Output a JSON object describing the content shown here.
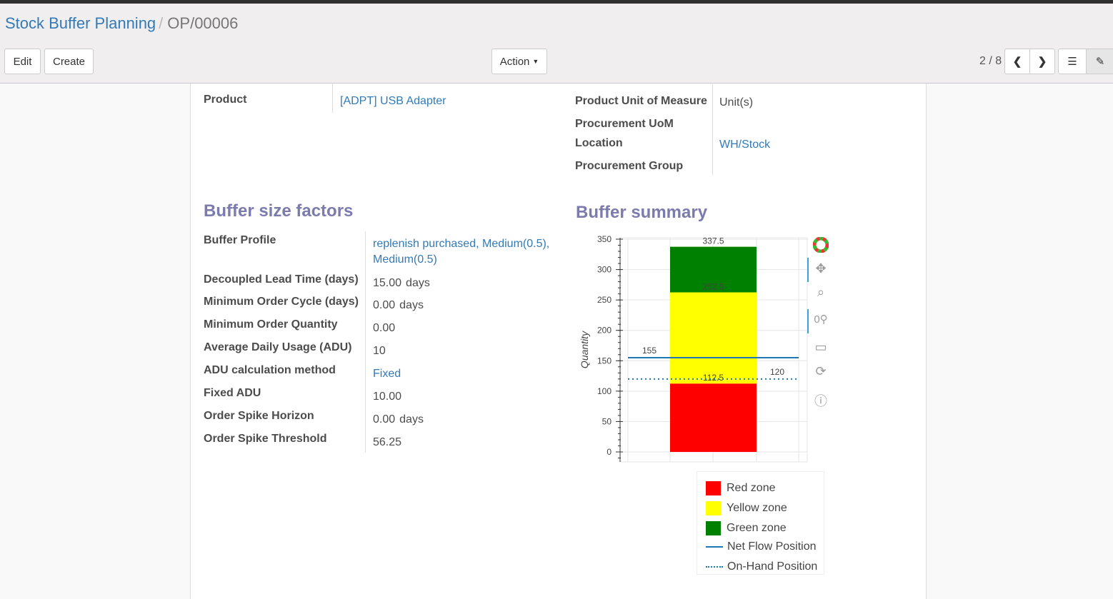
{
  "breadcrumb": {
    "parent": "Stock Buffer Planning",
    "current": "OP/00006"
  },
  "buttons": {
    "edit": "Edit",
    "create": "Create",
    "action": "Action"
  },
  "pager": {
    "text": "2 / 8"
  },
  "fields": {
    "product_label": "Product",
    "product_value": "[ADPT] USB Adapter",
    "uom_label": "Product Unit of Measure",
    "uom_value": "Unit(s)",
    "proc_uom_label": "Procurement UoM",
    "location_label": "Location",
    "location_value": "WH/Stock",
    "proc_group_label": "Procurement Group"
  },
  "factors": {
    "title": "Buffer size factors",
    "rows": [
      {
        "label": "Buffer Profile",
        "value": "replenish purchased, Medium(0.5),",
        "value2": "Medium(0.5)"
      },
      {
        "label": "Decoupled Lead Time (days)",
        "value": "15.00",
        "unit": "days"
      },
      {
        "label": "Minimum Order Cycle (days)",
        "value": "0.00",
        "unit": "days"
      },
      {
        "label": "Minimum Order Quantity",
        "value": "0.00"
      },
      {
        "label": "Average Daily Usage (ADU)",
        "value": "10"
      },
      {
        "label": "ADU calculation method",
        "value": "Fixed"
      },
      {
        "label": "Fixed ADU",
        "value": "10.00"
      },
      {
        "label": "Order Spike Horizon",
        "value": "0.00",
        "unit": "days"
      },
      {
        "label": "Order Spike Threshold",
        "value": "56.25"
      }
    ]
  },
  "summary": {
    "title": "Buffer summary"
  },
  "chart_data": {
    "type": "bar",
    "stacked": true,
    "ylabel": "Quantity",
    "ylim": [
      -10,
      350
    ],
    "yticks": [
      "350",
      "300",
      "250",
      "200",
      "150",
      "100",
      "50",
      "0"
    ],
    "grid": true,
    "zones": [
      {
        "name": "Red zone",
        "bottom": 0,
        "top": 112.5,
        "color": "#ff0000",
        "label": "112.5"
      },
      {
        "name": "Yellow zone",
        "bottom": 112.5,
        "top": 262.5,
        "color": "#ffff00",
        "label": "262.5"
      },
      {
        "name": "Green zone",
        "bottom": 262.5,
        "top": 337.5,
        "color": "#008000",
        "label": "337.5"
      }
    ],
    "lines": [
      {
        "name": "Net Flow Position",
        "value": 155,
        "label": "155",
        "style": "solid",
        "color": "#1f77b4"
      },
      {
        "name": "On-Hand Position",
        "value": 120,
        "label": "120",
        "style": "dotted",
        "color": "#1f77b4"
      }
    ],
    "legend": "bottom"
  }
}
